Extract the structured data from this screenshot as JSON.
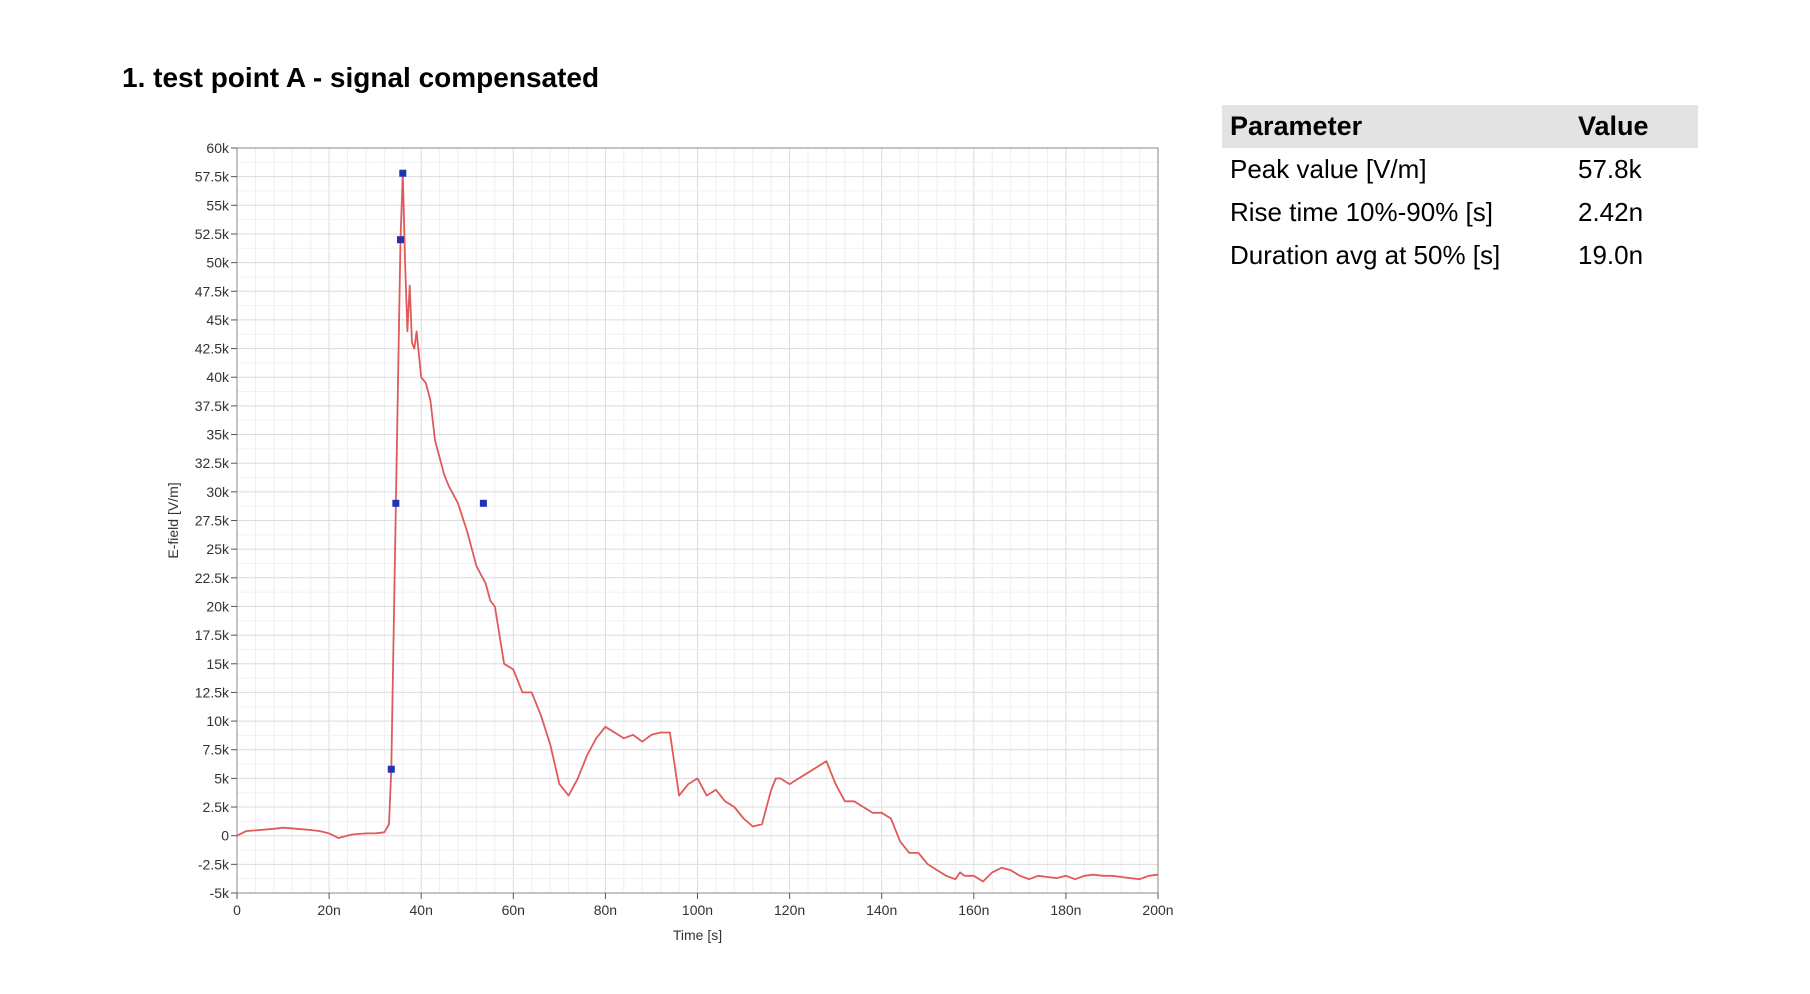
{
  "page": {
    "title": "1. test point A - signal compensated"
  },
  "table": {
    "headers": [
      "Parameter",
      "Value"
    ],
    "rows": [
      {
        "parameter": "Peak value [V/m]",
        "value": "57.8k"
      },
      {
        "parameter": "Rise time 10%-90% [s]",
        "value": "2.42n"
      },
      {
        "parameter": "Duration avg at 50% [s]",
        "value": "19.0n"
      }
    ]
  },
  "chart_data": {
    "type": "line",
    "title": "",
    "xlabel": "Time [s]",
    "ylabel": "E-field [V/m]",
    "xlim": [
      0,
      2e-07
    ],
    "ylim": [
      -5000,
      60000
    ],
    "grid": true,
    "x_ticks": [
      0,
      2e-08,
      4e-08,
      6e-08,
      8e-08,
      1e-07,
      1.2e-07,
      1.4e-07,
      1.6e-07,
      1.8e-07,
      2e-07
    ],
    "x_tick_labels": [
      "0",
      "20n",
      "40n",
      "60n",
      "80n",
      "100n",
      "120n",
      "140n",
      "160n",
      "180n",
      "200n"
    ],
    "y_ticks": [
      -5000,
      -2500,
      0,
      2500,
      5000,
      7500,
      10000,
      12500,
      15000,
      17500,
      20000,
      22500,
      25000,
      27500,
      30000,
      32500,
      35000,
      37500,
      40000,
      42500,
      45000,
      47500,
      50000,
      52500,
      55000,
      57500,
      60000
    ],
    "y_tick_labels": [
      "-5k",
      "-2.5k",
      "0",
      "2.5k",
      "5k",
      "7.5k",
      "10k",
      "12.5k",
      "15k",
      "17.5k",
      "20k",
      "22.5k",
      "25k",
      "27.5k",
      "30k",
      "32.5k",
      "35k",
      "37.5k",
      "40k",
      "42.5k",
      "45k",
      "47.5k",
      "50k",
      "52.5k",
      "55k",
      "57.5k",
      "60k"
    ],
    "series": [
      {
        "color": "#e05a5a",
        "x": [
          0,
          2e-09,
          5e-09,
          8e-09,
          1e-08,
          1.3e-08,
          1.6e-08,
          1.8e-08,
          2e-08,
          2.2e-08,
          2.5e-08,
          2.8e-08,
          3e-08,
          3.2e-08,
          3.3e-08,
          3.35e-08,
          3.45e-08,
          3.55e-08,
          3.6e-08,
          3.65e-08,
          3.7e-08,
          3.75e-08,
          3.8e-08,
          3.85e-08,
          3.9e-08,
          3.95e-08,
          4e-08,
          4.1e-08,
          4.2e-08,
          4.3e-08,
          4.4e-08,
          4.5e-08,
          4.6e-08,
          4.8e-08,
          5e-08,
          5.2e-08,
          5.4e-08,
          5.5e-08,
          5.6e-08,
          5.8e-08,
          6e-08,
          6.2e-08,
          6.4e-08,
          6.6e-08,
          6.8e-08,
          7e-08,
          7.2e-08,
          7.4e-08,
          7.6e-08,
          7.8e-08,
          8e-08,
          8.2e-08,
          8.4e-08,
          8.6e-08,
          8.8e-08,
          9e-08,
          9.2e-08,
          9.4e-08,
          9.6e-08,
          9.8e-08,
          1e-07,
          1.02e-07,
          1.04e-07,
          1.06e-07,
          1.08e-07,
          1.1e-07,
          1.12e-07,
          1.14e-07,
          1.15e-07,
          1.16e-07,
          1.17e-07,
          1.18e-07,
          1.2e-07,
          1.22e-07,
          1.24e-07,
          1.26e-07,
          1.28e-07,
          1.3e-07,
          1.32e-07,
          1.34e-07,
          1.36e-07,
          1.38e-07,
          1.4e-07,
          1.42e-07,
          1.44e-07,
          1.46e-07,
          1.48e-07,
          1.5e-07,
          1.52e-07,
          1.54e-07,
          1.56e-07,
          1.57e-07,
          1.58e-07,
          1.6e-07,
          1.62e-07,
          1.64e-07,
          1.66e-07,
          1.68e-07,
          1.7e-07,
          1.72e-07,
          1.74e-07,
          1.76e-07,
          1.78e-07,
          1.8e-07,
          1.82e-07,
          1.84e-07,
          1.86e-07,
          1.88e-07,
          1.9e-07,
          1.92e-07,
          1.94e-07,
          1.96e-07,
          1.98e-07,
          2e-07
        ],
        "y": [
          0,
          400,
          500,
          600,
          700,
          600,
          500,
          400,
          200,
          -200,
          100,
          200,
          200,
          300,
          1000,
          5800,
          29000,
          52000,
          57800,
          50000,
          44000,
          48000,
          43000,
          42500,
          44000,
          42000,
          40000,
          39500,
          38000,
          34500,
          33000,
          31500,
          30500,
          29000,
          26500,
          23500,
          22000,
          20500,
          20000,
          15000,
          14500,
          12500,
          12500,
          10500,
          8000,
          4500,
          3500,
          5000,
          7000,
          8500,
          9500,
          9000,
          8500,
          8800,
          8200,
          8800,
          9000,
          9000,
          3500,
          4500,
          5000,
          3500,
          4000,
          3000,
          2500,
          1500,
          800,
          1000,
          2500,
          4000,
          5000,
          5000,
          4500,
          5000,
          5500,
          6000,
          6500,
          4500,
          3000,
          3000,
          2500,
          2000,
          2000,
          1500,
          -500,
          -1500,
          -1500,
          -2500,
          -3000,
          -3500,
          -3800,
          -3200,
          -3500,
          -3500,
          -4000,
          -3200,
          -2800,
          -3000,
          -3500,
          -3800,
          -3500,
          -3600,
          -3700,
          -3500,
          -3800,
          -3500,
          -3400,
          -3500,
          -3500,
          -3600,
          -3700,
          -3800,
          -3500,
          -3400
        ],
        "y_override_note": ""
      }
    ],
    "markers": [
      {
        "x": 3.35e-08,
        "y": 5800
      },
      {
        "x": 3.45e-08,
        "y": 29000
      },
      {
        "x": 3.55e-08,
        "y": 52000
      },
      {
        "x": 3.6e-08,
        "y": 57800
      },
      {
        "x": 5.35e-08,
        "y": 29000
      }
    ],
    "marker_color": "#1f33b5"
  }
}
